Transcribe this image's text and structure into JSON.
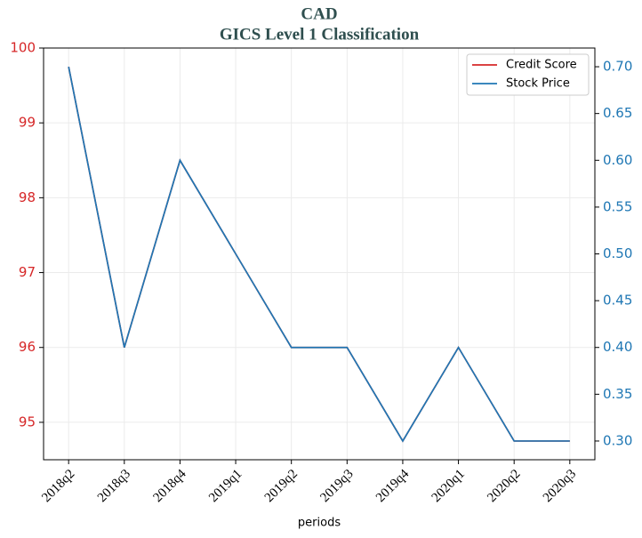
{
  "chart_data": {
    "type": "line",
    "title": "CAD",
    "subtitle": "GICS Level 1 Classification",
    "xlabel": "periods",
    "categories": [
      "2018q2",
      "2018q3",
      "2018q4",
      "2019q1",
      "2019q2",
      "2019q3",
      "2019q4",
      "2020q1",
      "2020q2",
      "2020q3"
    ],
    "series": [
      {
        "name": "Credit Score",
        "color": "#d62728",
        "values": [
          99.75,
          96,
          98.5,
          97.25,
          96,
          96,
          94.75,
          96,
          94.75,
          94.75
        ]
      },
      {
        "name": "Stock Price",
        "color": "#1f77b4",
        "axis": "y2",
        "values": [
          0.7,
          0.4,
          0.6,
          0.5,
          0.4,
          0.4,
          0.3,
          0.4,
          0.3,
          0.3
        ]
      }
    ],
    "ylim": [
      94.5,
      100
    ],
    "yticks": [
      95,
      96,
      97,
      98,
      99,
      100
    ],
    "y2lim": [
      0.28,
      0.72
    ],
    "y2ticks": [
      {
        "value": 0.3,
        "label": "0.30"
      },
      {
        "value": 0.35,
        "label": "0.35"
      },
      {
        "value": 0.4,
        "label": "0.40"
      },
      {
        "value": 0.45,
        "label": "0.45"
      },
      {
        "value": 0.5,
        "label": "0.50"
      },
      {
        "value": 0.55,
        "label": "0.55"
      },
      {
        "value": 0.6,
        "label": "0.60"
      },
      {
        "value": 0.65,
        "label": "0.65"
      },
      {
        "value": 0.7,
        "label": "0.70"
      }
    ],
    "grid": true,
    "legend": "upper right"
  }
}
